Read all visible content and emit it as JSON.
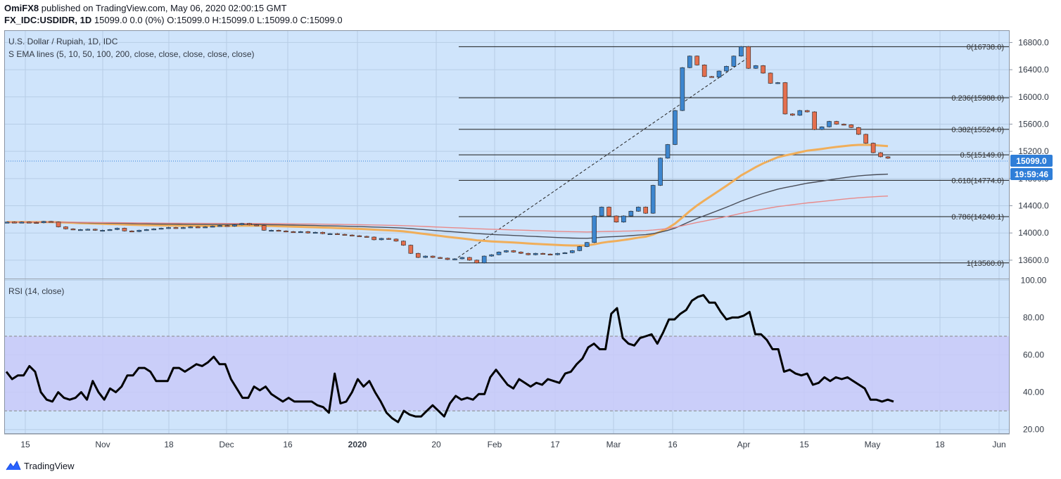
{
  "header": {
    "author": "OmiFX8",
    "published": "published on TradingView.com, May 06, 2020 02:00:15 GMT",
    "symbol": "FX_IDC:USDIDR, 1D",
    "quote": "15099.0 0.0 (0%) O:15099.0 H:15099.0 L:15099.0 C:15099.0"
  },
  "price_pane": {
    "title": "U.S. Dollar / Rupiah, 1D, IDC",
    "indicator": "S EMA lines (5, 10, 50, 100, 200, close, close, close, close, close)",
    "last_price_label": "15099.0",
    "countdown_label": "19:59:46"
  },
  "rsi_pane": {
    "title": "RSI (14, close)"
  },
  "footer": {
    "brand": "TradingView"
  },
  "colors": {
    "background": "#cfe4fb",
    "rsi_band": "#c9caf8",
    "bull": "#3d86cf",
    "bear": "#e46f4e",
    "ema50": "#f0ae5a",
    "ema100": "#4a4e59",
    "ema200": "#e88a8a",
    "rsi_line": "#000000",
    "badge": "#2f7ed8"
  },
  "chart_data": [
    {
      "type": "candlestick",
      "title": "U.S. Dollar / Rupiah, 1D, IDC",
      "x_ticks": [
        "15",
        "Nov",
        "18",
        "Dec",
        "16",
        "2020",
        "20",
        "Feb",
        "17",
        "Mar",
        "16",
        "Apr",
        "15",
        "May",
        "18",
        "Jun"
      ],
      "y_ticks": [
        13600,
        14000,
        14400,
        14800,
        15200,
        15600,
        16000,
        16400,
        16800
      ],
      "y_tick_labels": [
        "13600.0",
        "14000.0",
        "14400.0",
        "14800.0",
        "15200.0",
        "15600.0",
        "16000.0",
        "16400.0",
        "16800.0"
      ],
      "ylim": [
        13330,
        16980
      ],
      "close_estimates": [
        14160,
        14150,
        14160,
        14155,
        14150,
        14170,
        14160,
        14090,
        14060,
        14050,
        14050,
        14055,
        14040,
        14040,
        14050,
        14070,
        14030,
        14020,
        14040,
        14050,
        14060,
        14070,
        14080,
        14070,
        14080,
        14090,
        14085,
        14090,
        14100,
        14110,
        14100,
        14120,
        14140,
        14120,
        14110,
        14040,
        14040,
        14030,
        14020,
        14010,
        14020,
        14000,
        14010,
        13990,
        13990,
        13980,
        13970,
        13960,
        13950,
        13940,
        13900,
        13920,
        13910,
        13880,
        13820,
        13700,
        13640,
        13660,
        13640,
        13630,
        13610,
        13620,
        13640,
        13600,
        13560,
        13660,
        13680,
        13720,
        13740,
        13720,
        13700,
        13680,
        13700,
        13690,
        13680,
        13700,
        13710,
        13740,
        13800,
        13860,
        14250,
        14380,
        14250,
        14160,
        14250,
        14320,
        14380,
        14290,
        14700,
        15100,
        15300,
        15800,
        16430,
        16600,
        16470,
        16300,
        16290,
        16380,
        16450,
        16600,
        16740,
        16420,
        16460,
        16350,
        16200,
        16210,
        15750,
        15730,
        15800,
        15780,
        15520,
        15560,
        15640,
        15600,
        15590,
        15550,
        15450,
        15320,
        15180,
        15120,
        15099
      ],
      "ema_lines": [
        {
          "name": "EMA 50",
          "color": "#f0ae5a"
        },
        {
          "name": "EMA 100",
          "color": "#4a4e59"
        },
        {
          "name": "EMA 200",
          "color": "#e88a8a"
        }
      ],
      "fibonacci": [
        {
          "label": "0(16738.0)",
          "value": 16738.0
        },
        {
          "label": "0.236(15988.0)",
          "value": 15988.0
        },
        {
          "label": "0.382(15524.0)",
          "value": 15524.0
        },
        {
          "label": "0.5(15149.0)",
          "value": 15149.0
        },
        {
          "label": "0.618(14774.0)",
          "value": 14774.0
        },
        {
          "label": "0.786(14240.1)",
          "value": 14240.1
        },
        {
          "label": "1(13560.0)",
          "value": 13560.0
        }
      ],
      "last_price": 15099.0
    },
    {
      "type": "line",
      "title": "RSI (14, close)",
      "y_ticks": [
        20,
        40,
        60,
        80,
        100
      ],
      "y_tick_labels": [
        "20.00",
        "40.00",
        "60.00",
        "80.00",
        "100.00"
      ],
      "ylim": [
        18,
        100.5
      ],
      "band": [
        30,
        70
      ],
      "values": [
        51,
        47,
        49,
        49,
        54,
        51,
        40,
        36,
        35,
        40,
        37,
        36,
        37,
        40,
        36,
        46,
        40,
        36,
        42,
        40,
        43,
        49,
        49,
        53,
        53,
        51,
        46,
        46,
        46,
        53,
        53,
        51,
        53,
        55,
        54,
        56,
        59,
        55,
        55,
        47,
        42,
        37,
        37,
        43,
        41,
        43,
        39,
        37,
        35,
        37,
        35,
        35,
        35,
        35,
        33,
        32,
        29,
        50,
        34,
        35,
        40,
        47,
        43,
        46,
        40,
        35,
        29,
        26,
        24,
        30,
        28,
        27,
        27,
        30,
        33,
        30,
        27,
        34,
        38,
        36,
        37,
        36,
        39,
        39,
        48,
        52,
        48,
        44,
        42,
        47,
        45,
        43,
        45,
        44,
        47,
        46,
        45,
        50,
        51,
        55,
        58,
        64,
        66,
        63,
        63,
        82,
        85,
        69,
        66,
        65,
        69,
        70,
        71,
        66,
        72,
        79,
        79,
        82,
        84,
        89,
        91,
        92,
        88,
        88,
        83,
        79,
        80,
        80,
        81,
        83,
        71,
        71,
        68,
        63,
        63,
        51,
        52,
        50,
        49,
        50,
        44,
        45,
        48,
        46,
        48,
        47,
        48,
        46,
        44,
        42,
        36,
        36,
        35,
        36,
        35
      ]
    }
  ]
}
